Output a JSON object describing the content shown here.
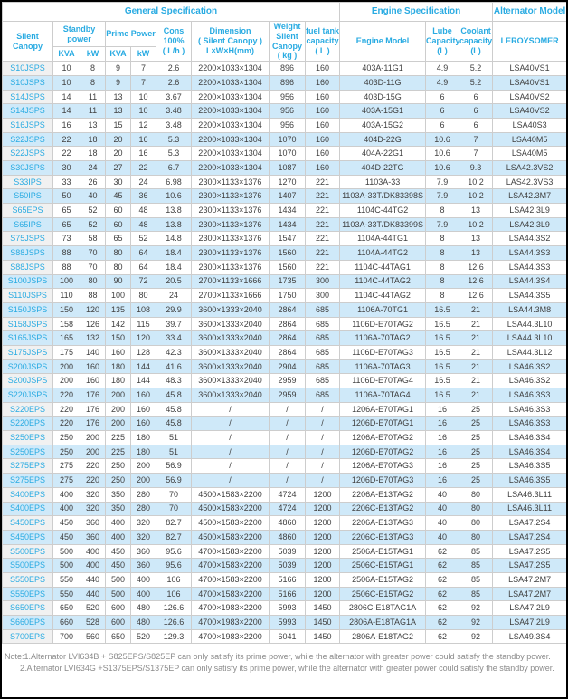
{
  "colors": {
    "accent": "#29abe2",
    "row_highlight": "#cfe9f9",
    "data_text": "#404040",
    "note_text": "#8b8b8b"
  },
  "table": {
    "header": {
      "groups": [
        {
          "label": "General Specification",
          "colspan": 9
        },
        {
          "label": "Engine Specification",
          "colspan": 3
        },
        {
          "label": "Alternator Model",
          "colspan": 1
        }
      ],
      "row2": [
        {
          "label": "Silent\nCanopy",
          "rowspan": 2
        },
        {
          "label": "Standby\npower",
          "colspan": 2
        },
        {
          "label": "Prime Power",
          "colspan": 2
        },
        {
          "label": "Cons\n100%\n( L/h )",
          "rowspan": 2
        },
        {
          "label": "Dimension\n( Silent Canopy )\nL×W×H(mm)",
          "rowspan": 2
        },
        {
          "label": "Weight\nSilent\nCanopy\n( kg )",
          "rowspan": 2
        },
        {
          "label": "fuel tank\ncapacity\n( L )",
          "rowspan": 2
        },
        {
          "label": "Engine Model",
          "rowspan": 2
        },
        {
          "label": "Lube\nCapacity\n(L)",
          "rowspan": 2
        },
        {
          "label": "Coolant\ncapacity\n(L)",
          "rowspan": 2
        },
        {
          "label": "LEROYSOMER",
          "rowspan": 2
        }
      ],
      "row3": [
        "KVA",
        "kW",
        "KVA",
        "kW"
      ]
    },
    "rows": [
      [
        "S10JSPS",
        "10",
        "8",
        "9",
        "7",
        "2.6",
        "2200×1033×1304",
        "896",
        "160",
        "403A-11G1",
        "4.9",
        "5.2",
        "LSA40VS1"
      ],
      [
        "S10JSPS",
        "10",
        "8",
        "9",
        "7",
        "2.6",
        "2200×1033×1304",
        "896",
        "160",
        "403D-11G",
        "4.9",
        "5.2",
        "LSA40VS1"
      ],
      [
        "S14JSPS",
        "14",
        "11",
        "13",
        "10",
        "3.67",
        "2200×1033×1304",
        "956",
        "160",
        "403D-15G",
        "6",
        "6",
        "LSA40VS2"
      ],
      [
        "S14JSPS",
        "14",
        "11",
        "13",
        "10",
        "3.48",
        "2200×1033×1304",
        "956",
        "160",
        "403A-15G1",
        "6",
        "6",
        "LSA40VS2"
      ],
      [
        "S16JSPS",
        "16",
        "13",
        "15",
        "12",
        "3.48",
        "2200×1033×1304",
        "956",
        "160",
        "403A-15G2",
        "6",
        "6",
        "LSA40S3"
      ],
      [
        "S22JSPS",
        "22",
        "18",
        "20",
        "16",
        "5.3",
        "2200×1033×1304",
        "1070",
        "160",
        "404D-22G",
        "10.6",
        "7",
        "LSA40M5"
      ],
      [
        "S22JSPS",
        "22",
        "18",
        "20",
        "16",
        "5.3",
        "2200×1033×1304",
        "1070",
        "160",
        "404A-22G1",
        "10.6",
        "7",
        "LSA40M5"
      ],
      [
        "S30JSPS",
        "30",
        "24",
        "27",
        "22",
        "6.7",
        "2200×1033×1304",
        "1087",
        "160",
        "404D-22TG",
        "10.6",
        "9.3",
        "LSA42.3VS2"
      ],
      [
        "S33IPS",
        "33",
        "26",
        "30",
        "24",
        "6.98",
        "2300×1133×1376",
        "1270",
        "221",
        "1103A-33",
        "7.9",
        "10.2",
        "LAS42.3VS3"
      ],
      [
        "S50IPS",
        "50",
        "40",
        "45",
        "36",
        "10.6",
        "2300×1133×1376",
        "1407",
        "221",
        "1103A-33T/DK83398S",
        "7.9",
        "10.2",
        "LSA42.3M7"
      ],
      [
        "S65EPS",
        "65",
        "52",
        "60",
        "48",
        "13.8",
        "2300×1133×1376",
        "1434",
        "221",
        "1104C-44TG2",
        "8",
        "13",
        "LSA42.3L9"
      ],
      [
        "S65IPS",
        "65",
        "52",
        "60",
        "48",
        "13.8",
        "2300×1133×1376",
        "1434",
        "221",
        "1103A-33T/DK83399S",
        "7.9",
        "10.2",
        "LSA42.3L9"
      ],
      [
        "S75JSPS",
        "73",
        "58",
        "65",
        "52",
        "14.8",
        "2300×1133×1376",
        "1547",
        "221",
        "1104A-44TG1",
        "8",
        "13",
        "LSA44.3S2"
      ],
      [
        "S88JSPS",
        "88",
        "70",
        "80",
        "64",
        "18.4",
        "2300×1133×1376",
        "1560",
        "221",
        "1104A-44TG2",
        "8",
        "13",
        "LSA44.3S3"
      ],
      [
        "S88JSPS",
        "88",
        "70",
        "80",
        "64",
        "18.4",
        "2300×1133×1376",
        "1560",
        "221",
        "1104C-44TAG1",
        "8",
        "12.6",
        "LSA44.3S3"
      ],
      [
        "S100JSPS",
        "100",
        "80",
        "90",
        "72",
        "20.5",
        "2700×1133×1666",
        "1735",
        "300",
        "1104C-44TAG2",
        "8",
        "12.6",
        "LSA44.3S4"
      ],
      [
        "S110JSPS",
        "110",
        "88",
        "100",
        "80",
        "24",
        "2700×1133×1666",
        "1750",
        "300",
        "1104C-44TAG2",
        "8",
        "12.6",
        "LSA44.3S5"
      ],
      [
        "S150JSPS",
        "150",
        "120",
        "135",
        "108",
        "29.9",
        "3600×1333×2040",
        "2864",
        "685",
        "1106A-70TG1",
        "16.5",
        "21",
        "LSA44.3M8"
      ],
      [
        "S158JSPS",
        "158",
        "126",
        "142",
        "115",
        "39.7",
        "3600×1333×2040",
        "2864",
        "685",
        "1106D-E70TAG2",
        "16.5",
        "21",
        "LSA44.3L10"
      ],
      [
        "S165JSPS",
        "165",
        "132",
        "150",
        "120",
        "33.4",
        "3600×1333×2040",
        "2864",
        "685",
        "1106A-70TAG2",
        "16.5",
        "21",
        "LSA44.3L10"
      ],
      [
        "S175JSPS",
        "175",
        "140",
        "160",
        "128",
        "42.3",
        "3600×1333×2040",
        "2864",
        "685",
        "1106D-E70TAG3",
        "16.5",
        "21",
        "LSA44.3L12"
      ],
      [
        "S200JSPS",
        "200",
        "160",
        "180",
        "144",
        "41.6",
        "3600×1333×2040",
        "2904",
        "685",
        "1106A-70TAG3",
        "16.5",
        "21",
        "LSA46.3S2"
      ],
      [
        "S200JSPS",
        "200",
        "160",
        "180",
        "144",
        "48.3",
        "3600×1333×2040",
        "2959",
        "685",
        "1106D-E70TAG4",
        "16.5",
        "21",
        "LSA46.3S2"
      ],
      [
        "S220JSPS",
        "220",
        "176",
        "200",
        "160",
        "45.8",
        "3600×1333×2040",
        "2959",
        "685",
        "1106A-70TAG4",
        "16.5",
        "21",
        "LSA46.3S3"
      ],
      [
        "S220EPS",
        "220",
        "176",
        "200",
        "160",
        "45.8",
        "/",
        "/",
        "/",
        "1206A-E70TAG1",
        "16",
        "25",
        "LSA46.3S3"
      ],
      [
        "S220EPS",
        "220",
        "176",
        "200",
        "160",
        "45.8",
        "/",
        "/",
        "/",
        "1206D-E70TAG1",
        "16",
        "25",
        "LSA46.3S3"
      ],
      [
        "S250EPS",
        "250",
        "200",
        "225",
        "180",
        "51",
        "/",
        "/",
        "/",
        "1206A-E70TAG2",
        "16",
        "25",
        "LSA46.3S4"
      ],
      [
        "S250EPS",
        "250",
        "200",
        "225",
        "180",
        "51",
        "/",
        "/",
        "/",
        "1206D-E70TAG2",
        "16",
        "25",
        "LSA46.3S4"
      ],
      [
        "S275EPS",
        "275",
        "220",
        "250",
        "200",
        "56.9",
        "/",
        "/",
        "/",
        "1206A-E70TAG3",
        "16",
        "25",
        "LSA46.3S5"
      ],
      [
        "S275EPS",
        "275",
        "220",
        "250",
        "200",
        "56.9",
        "/",
        "/",
        "/",
        "1206D-E70TAG3",
        "16",
        "25",
        "LSA46.3S5"
      ],
      [
        "S400EPS",
        "400",
        "320",
        "350",
        "280",
        "70",
        "4500×1583×2200",
        "4724",
        "1200",
        "2206A-E13TAG2",
        "40",
        "80",
        "LSA46.3L11"
      ],
      [
        "S400EPS",
        "400",
        "320",
        "350",
        "280",
        "70",
        "4500×1583×2200",
        "4724",
        "1200",
        "2206C-E13TAG2",
        "40",
        "80",
        "LSA46.3L11"
      ],
      [
        "S450EPS",
        "450",
        "360",
        "400",
        "320",
        "82.7",
        "4500×1583×2200",
        "4860",
        "1200",
        "2206A-E13TAG3",
        "40",
        "80",
        "LSA47.2S4"
      ],
      [
        "S450EPS",
        "450",
        "360",
        "400",
        "320",
        "82.7",
        "4500×1583×2200",
        "4860",
        "1200",
        "2206C-E13TAG3",
        "40",
        "80",
        "LSA47.2S4"
      ],
      [
        "S500EPS",
        "500",
        "400",
        "450",
        "360",
        "95.6",
        "4700×1583×2200",
        "5039",
        "1200",
        "2506A-E15TAG1",
        "62",
        "85",
        "LSA47.2S5"
      ],
      [
        "S500EPS",
        "500",
        "400",
        "450",
        "360",
        "95.6",
        "4700×1583×2200",
        "5039",
        "1200",
        "2506C-E15TAG1",
        "62",
        "85",
        "LSA47.2S5"
      ],
      [
        "S550EPS",
        "550",
        "440",
        "500",
        "400",
        "106",
        "4700×1583×2200",
        "5166",
        "1200",
        "2506A-E15TAG2",
        "62",
        "85",
        "LSA47.2M7"
      ],
      [
        "S550EPS",
        "550",
        "440",
        "500",
        "400",
        "106",
        "4700×1583×2200",
        "5166",
        "1200",
        "2506C-E15TAG2",
        "62",
        "85",
        "LSA47.2M7"
      ],
      [
        "S650EPS",
        "650",
        "520",
        "600",
        "480",
        "126.6",
        "4700×1983×2200",
        "5993",
        "1450",
        "2806C-E18TAG1A",
        "62",
        "92",
        "LSA47.2L9"
      ],
      [
        "S660EPS",
        "660",
        "528",
        "600",
        "480",
        "126.6",
        "4700×1983×2200",
        "5993",
        "1450",
        "2806A-E18TAG1A",
        "62",
        "92",
        "LSA47.2L9"
      ],
      [
        "S700EPS",
        "700",
        "560",
        "650",
        "520",
        "129.3",
        "4700×1983×2200",
        "6041",
        "1450",
        "2806A-E18TAG2",
        "62",
        "92",
        "LSA49.3S4"
      ]
    ]
  },
  "notes": [
    "Note:1.Alternator LVI634B + S825EPS/S825EP can only satisfy its prime power, while the alternator with greater power could satisfy the standby power.",
    "2.Alternator LVI634G +S1375EPS/S1375EP can only satisfy its prime power, while the alternator with greater power could satisfy the standby power."
  ]
}
